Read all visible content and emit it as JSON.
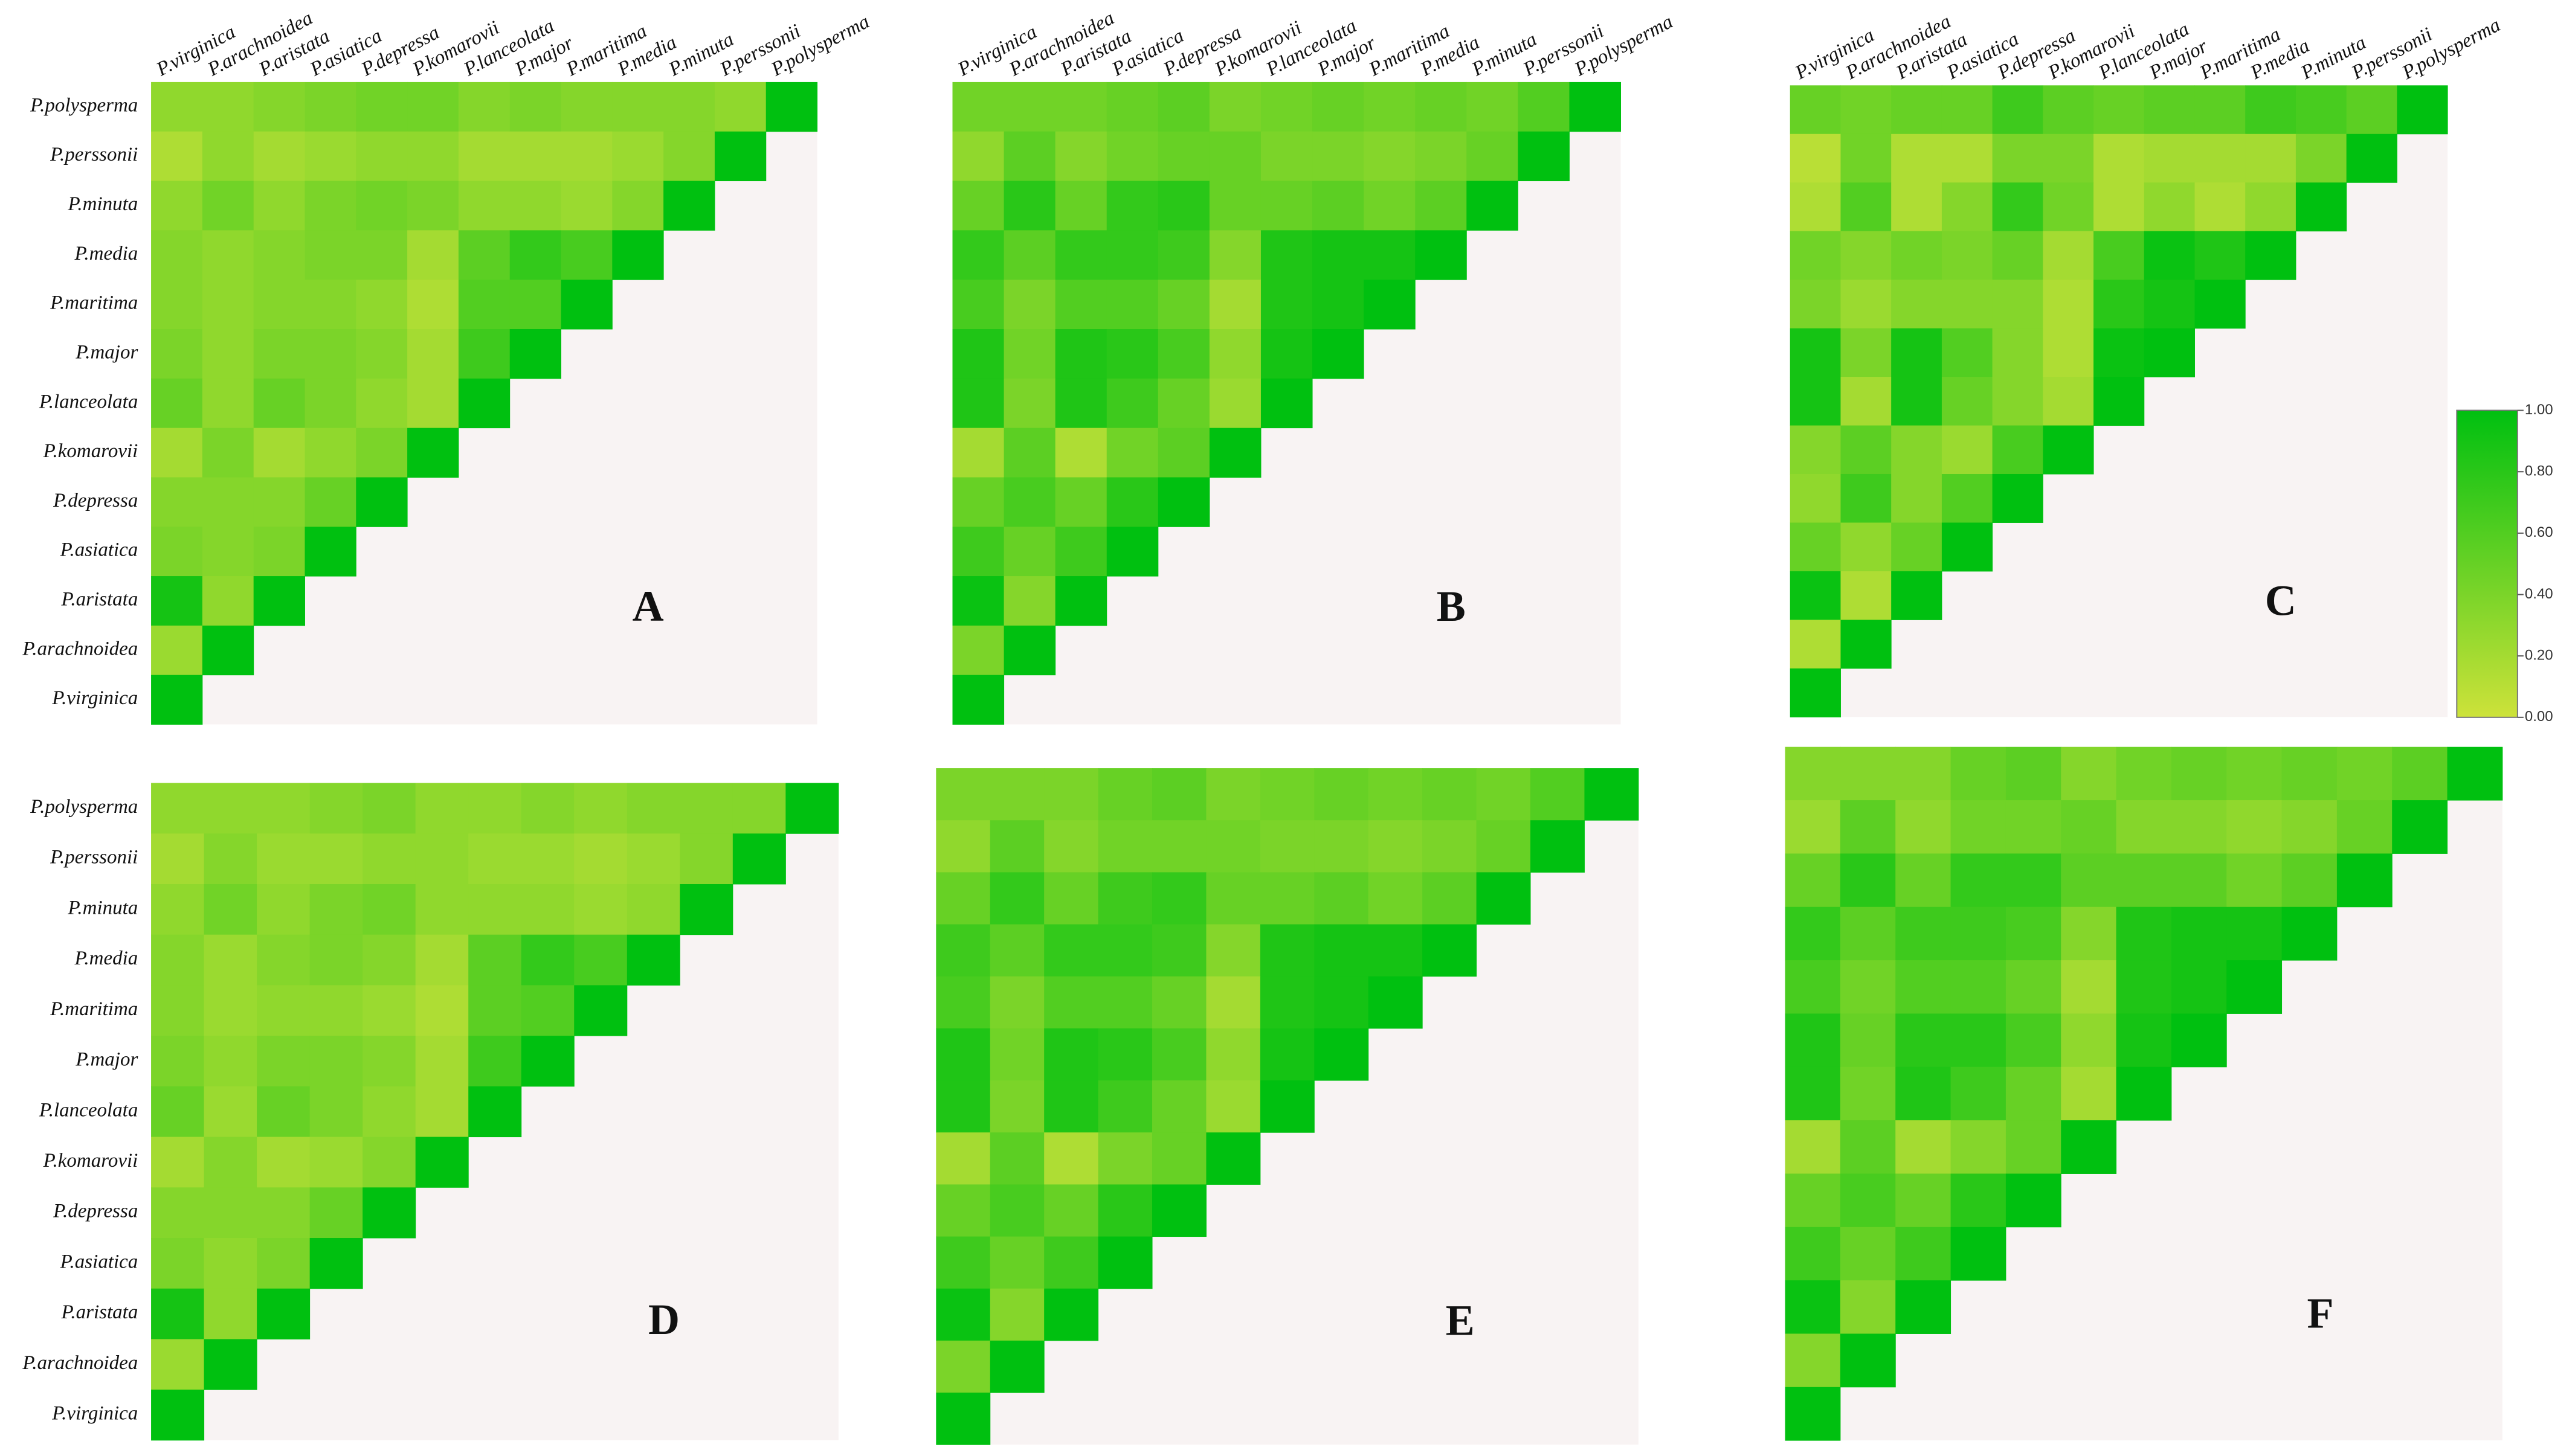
{
  "chart_data": [
    {
      "type": "heatmap",
      "label": "A",
      "zlim": [
        0,
        1
      ],
      "colors": [
        "#cde23a",
        "#00c010"
      ],
      "rows": [
        "P.polysperma",
        "P.perssonii",
        "P.minuta",
        "P.media",
        "P.maritima",
        "P.major",
        "P.lanceolata",
        "P.komarovii",
        "P.depressa",
        "P.asiatica",
        "P.aristata",
        "P.arachnoidea",
        "P.virginica"
      ],
      "columns": [
        "P.virginica",
        "P.arachnoidea",
        "P.aristata",
        "P.asiatica",
        "P.depressa",
        "P.komarovii",
        "P.lanceolata",
        "P.major",
        "P.maritima",
        "P.media",
        "P.minuta",
        "P.perssonii",
        "P.polysperma"
      ],
      "values": [
        [
          0.3,
          0.3,
          0.35,
          0.4,
          0.45,
          0.45,
          0.35,
          0.4,
          0.35,
          0.35,
          0.35,
          0.3,
          1
        ],
        [
          0.15,
          0.3,
          0.2,
          0.25,
          0.3,
          0.3,
          0.2,
          0.2,
          0.2,
          0.25,
          0.35,
          1
        ],
        [
          0.3,
          0.45,
          0.3,
          0.4,
          0.45,
          0.4,
          0.3,
          0.3,
          0.25,
          0.35,
          1
        ],
        [
          0.35,
          0.3,
          0.35,
          0.4,
          0.4,
          0.2,
          0.55,
          0.75,
          0.65,
          1
        ],
        [
          0.35,
          0.3,
          0.35,
          0.35,
          0.3,
          0.15,
          0.6,
          0.6,
          1
        ],
        [
          0.4,
          0.3,
          0.4,
          0.4,
          0.35,
          0.2,
          0.7,
          1
        ],
        [
          0.5,
          0.3,
          0.5,
          0.4,
          0.3,
          0.2,
          1
        ],
        [
          0.2,
          0.4,
          0.2,
          0.3,
          0.4,
          1
        ],
        [
          0.35,
          0.35,
          0.35,
          0.5,
          1
        ],
        [
          0.4,
          0.35,
          0.4,
          1
        ],
        [
          0.9,
          0.3,
          1
        ],
        [
          0.25,
          1
        ],
        [
          1
        ]
      ]
    },
    {
      "type": "heatmap",
      "label": "B",
      "zlim": [
        0,
        1
      ],
      "colors": [
        "#cde23a",
        "#00c010"
      ],
      "columns": [
        "P.virginica",
        "P.arachnoidea",
        "P.aristata",
        "P.asiatica",
        "P.depressa",
        "P.komarovii",
        "P.lanceolata",
        "P.major",
        "P.maritima",
        "P.media",
        "P.minuta",
        "P.perssonii",
        "P.polysperma"
      ],
      "values": [
        [
          0.45,
          0.45,
          0.45,
          0.5,
          0.55,
          0.4,
          0.45,
          0.5,
          0.45,
          0.5,
          0.45,
          0.6,
          1
        ],
        [
          0.3,
          0.55,
          0.35,
          0.45,
          0.5,
          0.5,
          0.4,
          0.4,
          0.35,
          0.4,
          0.5,
          1
        ],
        [
          0.5,
          0.8,
          0.5,
          0.75,
          0.8,
          0.5,
          0.5,
          0.55,
          0.45,
          0.55,
          1
        ],
        [
          0.75,
          0.55,
          0.75,
          0.75,
          0.7,
          0.35,
          0.85,
          0.9,
          0.9,
          1
        ],
        [
          0.65,
          0.4,
          0.6,
          0.6,
          0.5,
          0.2,
          0.85,
          0.9,
          1
        ],
        [
          0.85,
          0.45,
          0.85,
          0.8,
          0.65,
          0.3,
          0.9,
          1
        ],
        [
          0.85,
          0.4,
          0.85,
          0.7,
          0.5,
          0.25,
          1
        ],
        [
          0.2,
          0.55,
          0.15,
          0.45,
          0.55,
          1
        ],
        [
          0.5,
          0.65,
          0.5,
          0.8,
          1
        ],
        [
          0.7,
          0.5,
          0.7,
          1
        ],
        [
          0.95,
          0.35,
          1
        ],
        [
          0.4,
          1
        ],
        [
          1
        ]
      ]
    },
    {
      "type": "heatmap",
      "label": "C",
      "zlim": [
        0,
        1
      ],
      "colors": [
        "#cde23a",
        "#00c010"
      ],
      "columns": [
        "P.virginica",
        "P.arachnoidea",
        "P.aristata",
        "P.asiatica",
        "P.depressa",
        "P.komarovii",
        "P.lanceolata",
        "P.major",
        "P.maritima",
        "P.media",
        "P.minuta",
        "P.perssonii",
        "P.polysperma"
      ],
      "zticks": [
        {
          "value": 0,
          "label": "0.00"
        },
        {
          "value": 0.2,
          "label": "0.20"
        },
        {
          "value": 0.4,
          "label": "0.40"
        },
        {
          "value": 0.6,
          "label": "0.60"
        },
        {
          "value": 0.8,
          "label": "0.80"
        },
        {
          "value": 1,
          "label": "1.00"
        }
      ],
      "values": [
        [
          0.5,
          0.45,
          0.5,
          0.5,
          0.7,
          0.55,
          0.5,
          0.55,
          0.55,
          0.7,
          0.65,
          0.55,
          1
        ],
        [
          0.1,
          0.45,
          0.15,
          0.15,
          0.4,
          0.4,
          0.15,
          0.2,
          0.2,
          0.2,
          0.4,
          1
        ],
        [
          0.15,
          0.6,
          0.15,
          0.35,
          0.75,
          0.45,
          0.15,
          0.3,
          0.15,
          0.3,
          1
        ],
        [
          0.45,
          0.35,
          0.45,
          0.4,
          0.5,
          0.2,
          0.65,
          0.95,
          0.85,
          1
        ],
        [
          0.4,
          0.25,
          0.35,
          0.35,
          0.35,
          0.15,
          0.8,
          0.9,
          1
        ],
        [
          0.9,
          0.4,
          0.9,
          0.6,
          0.35,
          0.15,
          0.95,
          1
        ],
        [
          0.9,
          0.2,
          0.9,
          0.5,
          0.35,
          0.2,
          1
        ],
        [
          0.35,
          0.55,
          0.35,
          0.25,
          0.65,
          1
        ],
        [
          0.3,
          0.7,
          0.35,
          0.6,
          1
        ],
        [
          0.5,
          0.3,
          0.5,
          1
        ],
        [
          0.95,
          0.15,
          1
        ],
        [
          0.15,
          1
        ],
        [
          1
        ]
      ]
    },
    {
      "type": "heatmap",
      "label": "D",
      "zlim": [
        0,
        1
      ],
      "colors": [
        "#cde23a",
        "#00c010"
      ],
      "rows": [
        "P.polysperma",
        "P.perssonii",
        "P.minuta",
        "P.media",
        "P.maritima",
        "P.major",
        "P.lanceolata",
        "P.komarovii",
        "P.depressa",
        "P.asiatica",
        "P.aristata",
        "P.arachnoidea",
        "P.virginica"
      ],
      "values": [
        [
          0.3,
          0.3,
          0.3,
          0.35,
          0.4,
          0.3,
          0.3,
          0.35,
          0.3,
          0.35,
          0.35,
          0.35,
          1
        ],
        [
          0.2,
          0.35,
          0.25,
          0.25,
          0.3,
          0.3,
          0.25,
          0.25,
          0.2,
          0.25,
          0.35,
          1
        ],
        [
          0.3,
          0.45,
          0.3,
          0.4,
          0.45,
          0.3,
          0.3,
          0.3,
          0.25,
          0.3,
          1
        ],
        [
          0.35,
          0.25,
          0.35,
          0.4,
          0.35,
          0.2,
          0.55,
          0.75,
          0.65,
          1
        ],
        [
          0.35,
          0.25,
          0.3,
          0.3,
          0.25,
          0.15,
          0.55,
          0.6,
          1
        ],
        [
          0.4,
          0.3,
          0.4,
          0.4,
          0.35,
          0.2,
          0.7,
          1
        ],
        [
          0.5,
          0.25,
          0.5,
          0.4,
          0.3,
          0.2,
          1
        ],
        [
          0.2,
          0.35,
          0.2,
          0.25,
          0.35,
          1
        ],
        [
          0.35,
          0.35,
          0.35,
          0.5,
          1
        ],
        [
          0.4,
          0.3,
          0.4,
          1
        ],
        [
          0.9,
          0.3,
          1
        ],
        [
          0.25,
          1
        ],
        [
          1
        ]
      ]
    },
    {
      "type": "heatmap",
      "label": "E",
      "zlim": [
        0,
        1
      ],
      "colors": [
        "#cde23a",
        "#00c010"
      ],
      "values": [
        [
          0.4,
          0.4,
          0.4,
          0.5,
          0.55,
          0.4,
          0.45,
          0.5,
          0.45,
          0.5,
          0.45,
          0.6,
          1
        ],
        [
          0.3,
          0.55,
          0.35,
          0.45,
          0.45,
          0.45,
          0.4,
          0.4,
          0.35,
          0.4,
          0.5,
          1
        ],
        [
          0.5,
          0.75,
          0.5,
          0.7,
          0.75,
          0.5,
          0.5,
          0.55,
          0.45,
          0.55,
          1
        ],
        [
          0.7,
          0.55,
          0.75,
          0.75,
          0.7,
          0.35,
          0.85,
          0.9,
          0.9,
          1
        ],
        [
          0.65,
          0.4,
          0.6,
          0.6,
          0.5,
          0.2,
          0.85,
          0.9,
          1
        ],
        [
          0.85,
          0.45,
          0.85,
          0.8,
          0.65,
          0.3,
          0.9,
          1
        ],
        [
          0.85,
          0.4,
          0.85,
          0.7,
          0.5,
          0.25,
          1
        ],
        [
          0.2,
          0.55,
          0.15,
          0.4,
          0.5,
          1
        ],
        [
          0.5,
          0.65,
          0.5,
          0.8,
          1
        ],
        [
          0.7,
          0.5,
          0.7,
          1
        ],
        [
          0.95,
          0.35,
          1
        ],
        [
          0.4,
          1
        ],
        [
          1
        ]
      ]
    },
    {
      "type": "heatmap",
      "label": "F",
      "zlim": [
        0,
        1
      ],
      "colors": [
        "#cde23a",
        "#00c010"
      ],
      "values": [
        [
          0.35,
          0.35,
          0.35,
          0.5,
          0.55,
          0.35,
          0.45,
          0.5,
          0.45,
          0.5,
          0.45,
          0.55,
          1
        ],
        [
          0.25,
          0.55,
          0.3,
          0.45,
          0.45,
          0.5,
          0.35,
          0.35,
          0.3,
          0.35,
          0.5,
          1
        ],
        [
          0.5,
          0.8,
          0.5,
          0.75,
          0.75,
          0.55,
          0.55,
          0.55,
          0.45,
          0.55,
          1
        ],
        [
          0.75,
          0.55,
          0.7,
          0.7,
          0.65,
          0.35,
          0.85,
          0.9,
          0.9,
          1
        ],
        [
          0.65,
          0.45,
          0.6,
          0.6,
          0.5,
          0.2,
          0.85,
          0.9,
          1
        ],
        [
          0.85,
          0.5,
          0.8,
          0.8,
          0.65,
          0.3,
          0.9,
          1
        ],
        [
          0.85,
          0.45,
          0.85,
          0.7,
          0.5,
          0.2,
          1
        ],
        [
          0.2,
          0.55,
          0.2,
          0.35,
          0.5,
          1
        ],
        [
          0.5,
          0.65,
          0.5,
          0.8,
          1
        ],
        [
          0.7,
          0.5,
          0.7,
          1
        ],
        [
          0.95,
          0.35,
          1
        ],
        [
          0.35,
          1
        ],
        [
          1
        ]
      ]
    }
  ]
}
